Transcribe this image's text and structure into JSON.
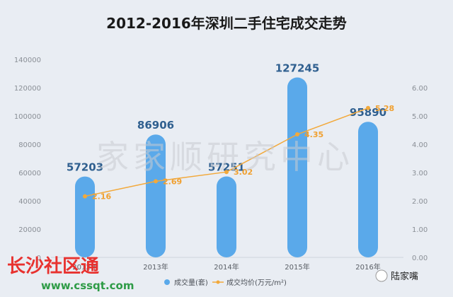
{
  "chart_data": {
    "type": "bar",
    "title": "2012-2016年深圳二手住宅成交走势",
    "categories": [
      "2012年",
      "2013年",
      "2014年",
      "2015年",
      "2016年"
    ],
    "series": [
      {
        "name": "成交量(套)",
        "type": "bar",
        "axis": "left",
        "color": "#5aa9ea",
        "values": [
          57203,
          86906,
          57251,
          127245,
          95890
        ]
      },
      {
        "name": "成交均价(万元/m²)",
        "type": "line",
        "axis": "right",
        "color": "#f2a93b",
        "values": [
          2.16,
          2.69,
          3.02,
          4.35,
          5.28
        ]
      }
    ],
    "ylim_left": [
      0,
      140000
    ],
    "yticks_left": [
      "0",
      "20000",
      "40000",
      "60000",
      "80000",
      "100000",
      "120000",
      "140000"
    ],
    "ylim_right": [
      0,
      7
    ],
    "yticks_right": [
      "0.00",
      "1.00",
      "2.00",
      "3.00",
      "4.00",
      "5.00",
      "6.00"
    ],
    "grid": false,
    "legend_position": "bottom"
  },
  "watermarks": {
    "center": "家家顺研究中心",
    "brand": "长沙社区通",
    "url": "www.cssqt.com",
    "author": "陆家嘴"
  }
}
